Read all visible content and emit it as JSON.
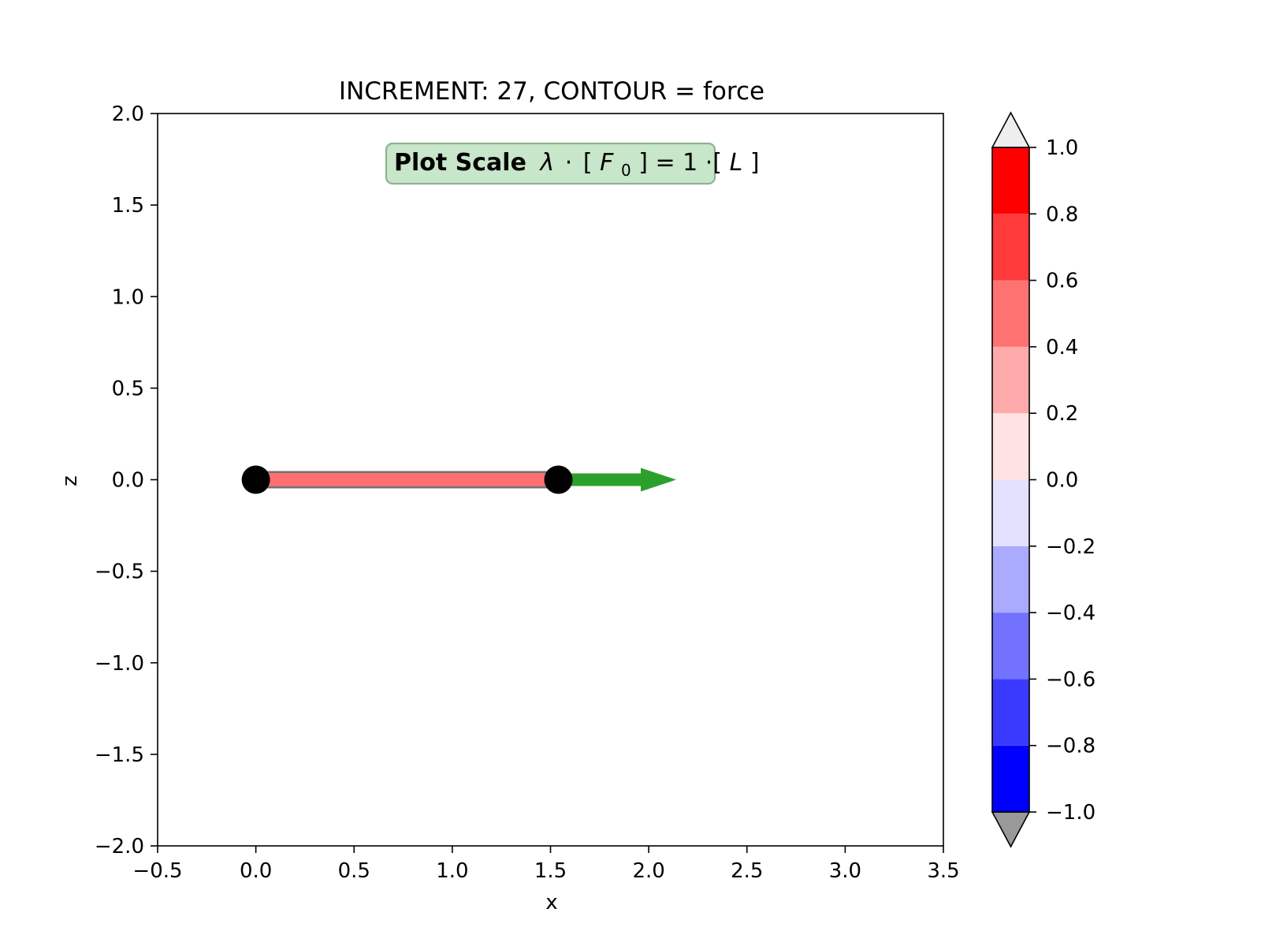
{
  "chart_data": {
    "type": "scatter",
    "title": "INCREMENT: 27, CONTOUR = force",
    "xlabel": "x",
    "ylabel": "z",
    "xlim": [
      -0.5,
      3.5
    ],
    "ylim": [
      -2.0,
      2.0
    ],
    "xticks": [
      -0.5,
      0.0,
      0.5,
      1.0,
      1.5,
      2.0,
      2.5,
      3.0,
      3.5
    ],
    "xtick_labels": [
      "−0.5",
      "0.0",
      "0.5",
      "1.0",
      "1.5",
      "2.0",
      "2.5",
      "3.0",
      "3.5"
    ],
    "yticks": [
      -2.0,
      -1.5,
      -1.0,
      -0.5,
      0.0,
      0.5,
      1.0,
      1.5,
      2.0
    ],
    "ytick_labels": [
      "−2.0",
      "−1.5",
      "−1.0",
      "−0.5",
      "0.0",
      "0.5",
      "1.0",
      "1.5",
      "2.0"
    ],
    "grid": false,
    "nodes": [
      {
        "x": 0.0,
        "z": 0.0
      },
      {
        "x": 1.54,
        "z": 0.0
      }
    ],
    "elements": [
      {
        "from": 0,
        "to": 1,
        "force": 0.5,
        "color": "#ff7070"
      }
    ],
    "load_arrow": {
      "x": 1.54,
      "z": 0.0,
      "dx": 0.6,
      "dz": 0.0,
      "color": "#2ca02c"
    },
    "annotation": {
      "bold_text": "Plot Scale",
      "math_lambda": "λ",
      "math_dot": "·",
      "math_open": "[",
      "math_F": "F",
      "math_sub": "0",
      "math_close_eq": "] = 1 ·[",
      "math_L": "L",
      "math_end": "]",
      "box_color": "#c8e6c9",
      "border_color": "#8fb38f"
    },
    "colorbar": {
      "ticks": [
        -1.0,
        -0.8,
        -0.6,
        -0.4,
        -0.2,
        0.0,
        0.2,
        0.4,
        0.6,
        0.8,
        1.0
      ],
      "tick_labels": [
        "−1.0",
        "−0.8",
        "−0.6",
        "−0.4",
        "−0.2",
        "0.0",
        "0.2",
        "0.4",
        "0.6",
        "0.8",
        "1.0"
      ],
      "bands": [
        {
          "from": -1.0,
          "to": -0.8,
          "color": "#0000ff"
        },
        {
          "from": -0.8,
          "to": -0.6,
          "color": "#3a3aff"
        },
        {
          "from": -0.6,
          "to": -0.4,
          "color": "#7272ff"
        },
        {
          "from": -0.4,
          "to": -0.2,
          "color": "#aaaaff"
        },
        {
          "from": -0.2,
          "to": 0.0,
          "color": "#e2e2ff"
        },
        {
          "from": 0.0,
          "to": 0.2,
          "color": "#ffe2e2"
        },
        {
          "from": 0.2,
          "to": 0.4,
          "color": "#ffaaaa"
        },
        {
          "from": 0.4,
          "to": 0.6,
          "color": "#ff7272"
        },
        {
          "from": 0.6,
          "to": 0.8,
          "color": "#ff3a3a"
        },
        {
          "from": 0.8,
          "to": 1.0,
          "color": "#ff0000"
        }
      ],
      "extend_max_color": "#eeeeee",
      "extend_min_color": "#999999"
    }
  }
}
